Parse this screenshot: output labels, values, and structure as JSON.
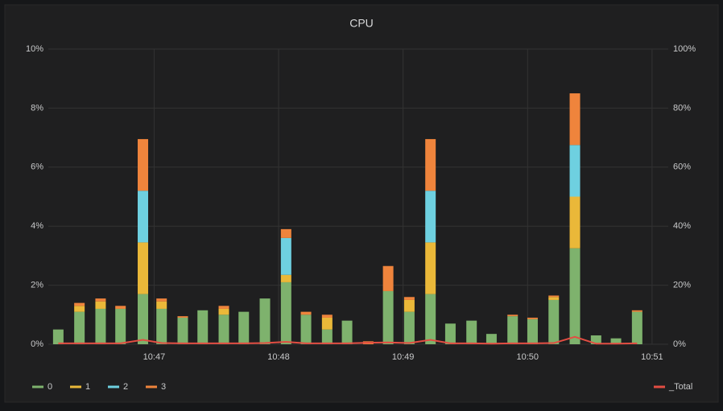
{
  "chart_data": {
    "type": "bar",
    "title": "CPU",
    "x": [
      46.23,
      46.4,
      46.57,
      46.73,
      46.91,
      47.06,
      47.23,
      47.39,
      47.56,
      47.72,
      47.89,
      48.06,
      48.22,
      48.39,
      48.55,
      48.72,
      48.88,
      49.05,
      49.22,
      49.38,
      49.55,
      49.71,
      49.88,
      50.04,
      50.21,
      50.38,
      50.55,
      50.71,
      50.88
    ],
    "xlim": [
      46.15,
      51.13
    ],
    "xticks": [
      {
        "value": 47,
        "label": "10:47"
      },
      {
        "value": 48,
        "label": "10:48"
      },
      {
        "value": 49,
        "label": "10:49"
      },
      {
        "value": 50,
        "label": "10:50"
      },
      {
        "value": 51,
        "label": "10:51"
      }
    ],
    "ylim": [
      0,
      10
    ],
    "yticks": [
      {
        "value": 0,
        "label": "0%"
      },
      {
        "value": 2,
        "label": "2%"
      },
      {
        "value": 4,
        "label": "4%"
      },
      {
        "value": 6,
        "label": "6%"
      },
      {
        "value": 8,
        "label": "8%"
      },
      {
        "value": 10,
        "label": "10%"
      }
    ],
    "y2lim": [
      0,
      100
    ],
    "y2ticks": [
      {
        "value": 0,
        "label": "0%"
      },
      {
        "value": 20,
        "label": "20%"
      },
      {
        "value": 40,
        "label": "40%"
      },
      {
        "value": 60,
        "label": "60%"
      },
      {
        "value": 80,
        "label": "80%"
      },
      {
        "value": 100,
        "label": "100%"
      }
    ],
    "grid": true,
    "stacked": true,
    "series": [
      {
        "name": "0",
        "color": "#7eb26d",
        "values": [
          0.5,
          1.1,
          1.2,
          1.2,
          1.7,
          1.2,
          0.9,
          1.15,
          1.0,
          1.1,
          1.55,
          2.1,
          1.0,
          0.5,
          0.8,
          0,
          1.8,
          1.1,
          1.7,
          0.7,
          0.8,
          0.35,
          0.95,
          0.85,
          1.5,
          3.25,
          0.3,
          0.2,
          1.1
        ]
      },
      {
        "name": "1",
        "color": "#eab839",
        "values": [
          0,
          0.2,
          0.25,
          0,
          1.75,
          0.25,
          0,
          0,
          0.2,
          0,
          0,
          0.25,
          0,
          0.4,
          0,
          0,
          0,
          0.4,
          1.75,
          0,
          0,
          0,
          0,
          0,
          0.1,
          1.75,
          0,
          0,
          0
        ]
      },
      {
        "name": "2",
        "color": "#6ed0e0",
        "values": [
          0,
          0,
          0,
          0,
          1.75,
          0,
          0,
          0,
          0,
          0,
          0,
          1.25,
          0,
          0,
          0,
          0,
          0,
          0,
          1.75,
          0,
          0,
          0,
          0,
          0,
          0,
          1.75,
          0,
          0,
          0
        ]
      },
      {
        "name": "3",
        "color": "#ef843c",
        "values": [
          0,
          0.1,
          0.1,
          0.1,
          1.75,
          0.1,
          0.05,
          0,
          0.1,
          0,
          0,
          0.3,
          0.1,
          0.1,
          0,
          0.1,
          0.85,
          0.1,
          1.75,
          0,
          0,
          0,
          0.05,
          0.05,
          0.05,
          1.75,
          0,
          0,
          0.05
        ]
      },
      {
        "name": "_Total",
        "color": "#e24d42",
        "axis": "y2",
        "type": "line",
        "values": [
          0.3,
          0.3,
          0.3,
          0.3,
          1.5,
          0.4,
          0.3,
          0.3,
          0.3,
          0.3,
          0.4,
          0.8,
          0.3,
          0.3,
          0.3,
          0.5,
          0.6,
          0.4,
          1.5,
          0.3,
          0.3,
          0.2,
          0.3,
          0.3,
          0.4,
          2.5,
          0.2,
          0.2,
          0.3
        ]
      }
    ]
  }
}
